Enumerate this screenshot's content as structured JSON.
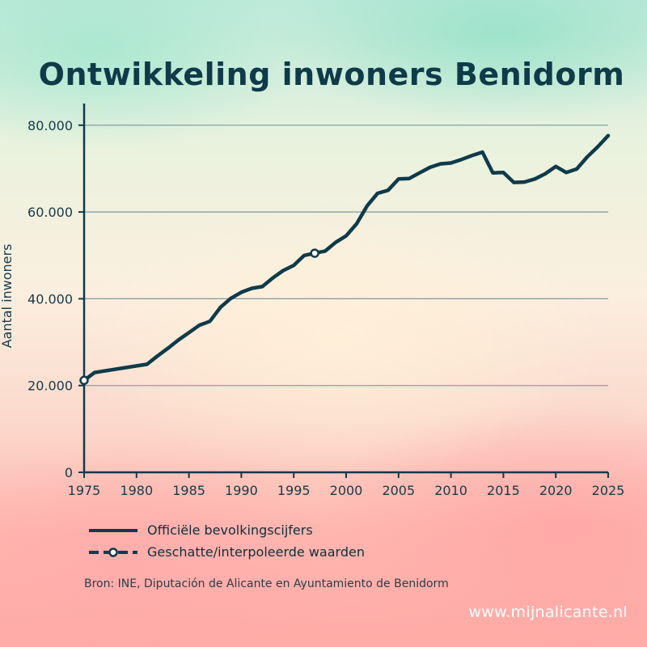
{
  "chart_data": {
    "type": "line",
    "title": "Ontwikkeling inwoners Benidorm",
    "ylabel": "Aantal inwoners",
    "xlabel": "",
    "xlim": [
      1975,
      2025
    ],
    "ylim": [
      0,
      85000
    ],
    "x_ticks": [
      1975,
      1980,
      1985,
      1990,
      1995,
      2000,
      2005,
      2010,
      2015,
      2020,
      2025
    ],
    "y_ticks": [
      0,
      20000,
      40000,
      60000,
      80000
    ],
    "y_tick_labels": [
      "0",
      "20.000",
      "40.000",
      "60.000",
      "80.000"
    ],
    "grid": "horizontal",
    "legend_position": "bottom",
    "series": [
      {
        "name": "Officiële bevolkingscijfers",
        "style": "solid",
        "points": [
          [
            1975,
            21200
          ],
          [
            1976,
            23000
          ],
          [
            1981,
            24900
          ],
          [
            1982,
            26800
          ],
          [
            1983,
            28600
          ],
          [
            1984,
            30500
          ],
          [
            1985,
            32200
          ],
          [
            1986,
            33900
          ],
          [
            1987,
            34800
          ],
          [
            1988,
            38000
          ],
          [
            1989,
            40100
          ],
          [
            1990,
            41500
          ],
          [
            1991,
            42400
          ],
          [
            1992,
            42800
          ],
          [
            1993,
            44800
          ],
          [
            1994,
            46500
          ],
          [
            1995,
            47700
          ],
          [
            1996,
            50000
          ],
          [
            1997,
            50500
          ],
          [
            1998,
            51000
          ],
          [
            1999,
            53000
          ],
          [
            2000,
            54500
          ],
          [
            2001,
            57300
          ],
          [
            2002,
            61400
          ],
          [
            2003,
            64300
          ],
          [
            2004,
            65000
          ],
          [
            2005,
            67600
          ],
          [
            2006,
            67700
          ],
          [
            2007,
            69000
          ],
          [
            2008,
            70300
          ],
          [
            2009,
            71100
          ],
          [
            2010,
            71300
          ],
          [
            2011,
            72100
          ],
          [
            2012,
            73000
          ],
          [
            2013,
            73800
          ],
          [
            2014,
            69000
          ],
          [
            2015,
            69100
          ],
          [
            2016,
            66800
          ],
          [
            2017,
            66900
          ],
          [
            2018,
            67600
          ],
          [
            2019,
            68800
          ],
          [
            2020,
            70500
          ],
          [
            2021,
            69100
          ],
          [
            2022,
            69900
          ],
          [
            2023,
            72700
          ],
          [
            2024,
            75000
          ],
          [
            2025,
            77600
          ]
        ]
      },
      {
        "name": "Geschatte/interpoleerde waarden",
        "style": "dashed-marker",
        "points": [
          [
            1975,
            21200
          ],
          [
            1997,
            50500
          ]
        ]
      }
    ]
  },
  "legend": {
    "official": "Officiële bevolkingscijfers",
    "estimated": "Geschatte/interpoleerde waarden"
  },
  "source": "Bron: INE, Diputación de Alicante en Ayuntamiento de Benidorm",
  "watermark": "www.mijnalicante.nl",
  "colors": {
    "line": "#0f3a4a",
    "grid": "#7f9aa0",
    "marker_fill": "#ffffff"
  }
}
